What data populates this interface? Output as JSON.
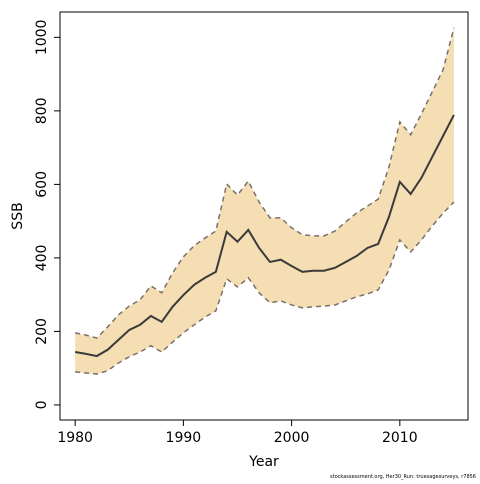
{
  "chart_data": {
    "type": "band-line",
    "x_label": "Year",
    "y_label": "SSB",
    "footnote": "stockassessment.org, Her30_Run: truesagesurveys, r7856",
    "x": [
      1980,
      1981,
      1982,
      1983,
      1984,
      1985,
      1986,
      1987,
      1988,
      1989,
      1990,
      1991,
      1992,
      1993,
      1994,
      1995,
      1996,
      1997,
      1998,
      1999,
      2000,
      2001,
      2002,
      2003,
      2004,
      2005,
      2006,
      2007,
      2008,
      2009,
      2010,
      2011,
      2012,
      2013,
      2014,
      2015
    ],
    "values": [
      144,
      139,
      133,
      150,
      177,
      204,
      218,
      242,
      226,
      267,
      299,
      327,
      346,
      362,
      471,
      444,
      476,
      427,
      389,
      395,
      378,
      362,
      365,
      365,
      373,
      389,
      405,
      427,
      438,
      512,
      607,
      574,
      618,
      675,
      732,
      789
    ],
    "upper": [
      196,
      190,
      182,
      212,
      245,
      269,
      286,
      324,
      305,
      359,
      403,
      433,
      454,
      473,
      601,
      571,
      609,
      552,
      509,
      509,
      482,
      463,
      460,
      460,
      473,
      498,
      522,
      541,
      560,
      648,
      770,
      735,
      792,
      852,
      912,
      1026
    ],
    "lower": [
      90,
      87,
      84,
      93,
      114,
      131,
      144,
      161,
      144,
      171,
      196,
      218,
      239,
      256,
      343,
      321,
      346,
      305,
      278,
      283,
      272,
      264,
      267,
      269,
      272,
      283,
      294,
      302,
      313,
      367,
      449,
      416,
      449,
      487,
      522,
      552
    ],
    "line_color": "#3a3a3a",
    "band_color": "#f5deb3",
    "band_edge_color": "#7a7068",
    "xlim": [
      1978.6,
      2016.3
    ],
    "ylim": [
      -41,
      1069
    ],
    "xticks": [
      1980,
      1990,
      2000,
      2010
    ],
    "yticks": [
      0,
      200,
      400,
      600,
      800,
      1000
    ]
  }
}
